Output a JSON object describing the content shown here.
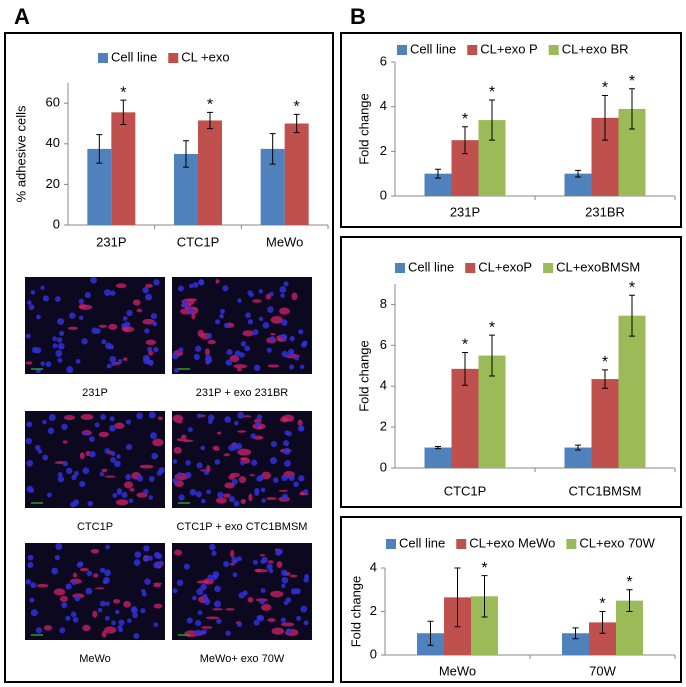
{
  "panel_labels": [
    "A",
    "B"
  ],
  "image_captions": [
    "231P",
    "231P + exo 231BR",
    "CTC1P",
    "CTC1P + exo CTC1BMSM",
    "MeWo",
    "MeWo+ exo 70W"
  ],
  "chart_data": [
    {
      "type": "bar",
      "y_label": "% adhesive cells",
      "categories": [
        "231P",
        "CTC1P",
        "MeWo"
      ],
      "ylim": [
        0,
        70
      ],
      "yticks": [
        0,
        20,
        40,
        60
      ],
      "series": [
        {
          "name": "Cell line",
          "color": "#4f81bd",
          "values": [
            37.5,
            35,
            37.5
          ],
          "errors": [
            7,
            6.5,
            7.5
          ]
        },
        {
          "name": "CL +exo",
          "color": "#c0504d",
          "values": [
            55.5,
            51.5,
            50
          ],
          "errors": [
            6,
            4,
            4.5
          ],
          "markers": [
            "*",
            "*",
            "*"
          ]
        }
      ]
    },
    {
      "type": "bar",
      "y_label": "Fold change",
      "categories": [
        "231P",
        "231BR"
      ],
      "ylim": [
        0,
        6
      ],
      "yticks": [
        0,
        2,
        4,
        6
      ],
      "series": [
        {
          "name": "Cell line",
          "color": "#4f81bd",
          "values": [
            1,
            1
          ],
          "errors": [
            0.2,
            0.15
          ]
        },
        {
          "name": "CL+exo P",
          "color": "#c0504d",
          "values": [
            2.5,
            3.5
          ],
          "errors": [
            0.6,
            1.0
          ],
          "markers": [
            "*",
            "*"
          ]
        },
        {
          "name": "CL+exo BR",
          "color": "#9bbb59",
          "values": [
            3.4,
            3.9
          ],
          "errors": [
            0.9,
            0.9
          ],
          "markers": [
            "*",
            "*"
          ]
        }
      ]
    },
    {
      "type": "bar",
      "y_label": "Fold change",
      "categories": [
        "CTC1P",
        "CTC1BMSM"
      ],
      "ylim": [
        0,
        9
      ],
      "yticks": [
        0,
        2,
        4,
        6,
        8
      ],
      "series": [
        {
          "name": "Cell line",
          "color": "#4f81bd",
          "values": [
            1,
            1
          ],
          "errors": [
            0.05,
            0.12
          ]
        },
        {
          "name": "CL+exoP",
          "color": "#c0504d",
          "values": [
            4.85,
            4.35
          ],
          "errors": [
            0.8,
            0.45
          ],
          "markers": [
            "*",
            "*"
          ]
        },
        {
          "name": "CL+exoBMSM",
          "color": "#9bbb59",
          "values": [
            5.5,
            7.45
          ],
          "errors": [
            1.0,
            1.0
          ],
          "markers": [
            "*",
            "*"
          ]
        }
      ]
    },
    {
      "type": "bar",
      "y_label": "Fold change",
      "categories": [
        "MeWo",
        "70W"
      ],
      "ylim": [
        0,
        4
      ],
      "yticks": [
        0,
        2,
        4
      ],
      "series": [
        {
          "name": "Cell line",
          "color": "#4f81bd",
          "values": [
            1,
            1
          ],
          "errors": [
            0.55,
            0.25
          ]
        },
        {
          "name": "CL+exo MeWo",
          "color": "#c0504d",
          "values": [
            2.65,
            1.5
          ],
          "errors": [
            1.35,
            0.5
          ],
          "markers": [
            null,
            "*"
          ]
        },
        {
          "name": "CL+exo 70W",
          "color": "#9bbb59",
          "values": [
            2.7,
            2.5
          ],
          "errors": [
            0.95,
            0.5
          ],
          "markers": [
            "*",
            "*"
          ]
        }
      ]
    }
  ]
}
